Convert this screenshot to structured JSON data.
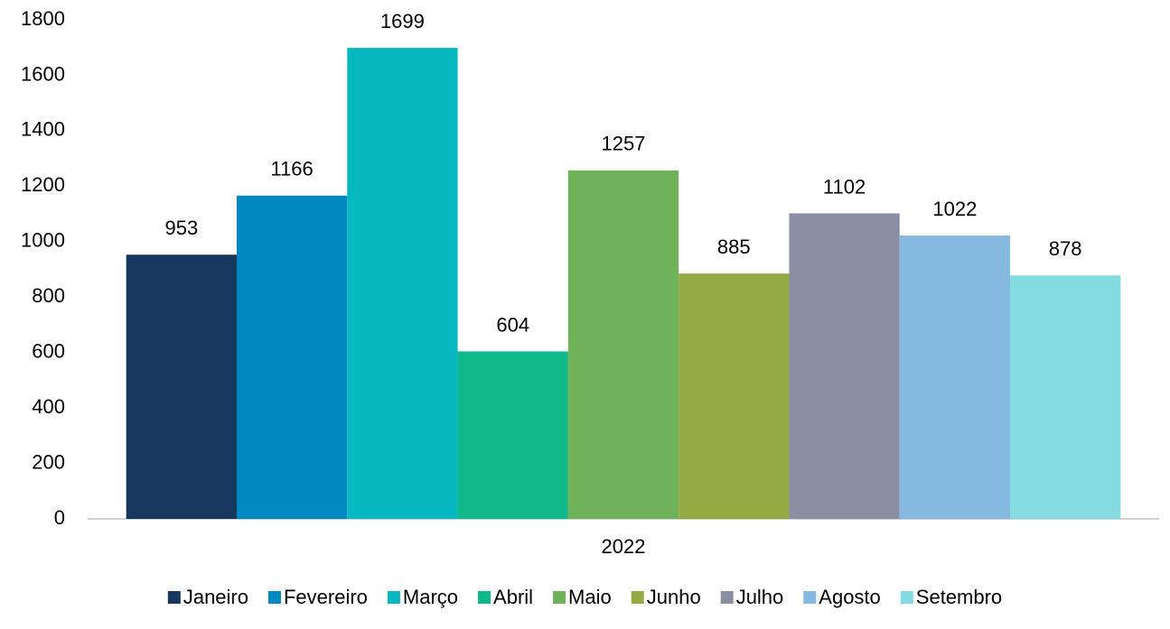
{
  "chart_data": {
    "type": "bar",
    "categories": [
      "2022"
    ],
    "series": [
      {
        "name": "Janeiro",
        "color": "#17375e",
        "values": [
          953
        ]
      },
      {
        "name": "Fevereiro",
        "color": "#0089c1",
        "values": [
          1166
        ]
      },
      {
        "name": "Março",
        "color": "#08b8c0",
        "values": [
          1699
        ]
      },
      {
        "name": "Abril",
        "color": "#10b98a",
        "values": [
          604
        ]
      },
      {
        "name": "Maio",
        "color": "#70b259",
        "values": [
          1257
        ]
      },
      {
        "name": "Junho",
        "color": "#93ab42",
        "values": [
          885
        ]
      },
      {
        "name": "Julho",
        "color": "#8b8fa3",
        "values": [
          1102
        ]
      },
      {
        "name": "Agosto",
        "color": "#86b9e0",
        "values": [
          1022
        ]
      },
      {
        "name": "Setembro",
        "color": "#84dbe0",
        "values": [
          878
        ]
      }
    ],
    "ylim": [
      0,
      1800
    ],
    "yticks": [
      0,
      200,
      400,
      600,
      800,
      1000,
      1200,
      1400,
      1600,
      1800
    ],
    "grid": false,
    "legend": "bottom"
  }
}
